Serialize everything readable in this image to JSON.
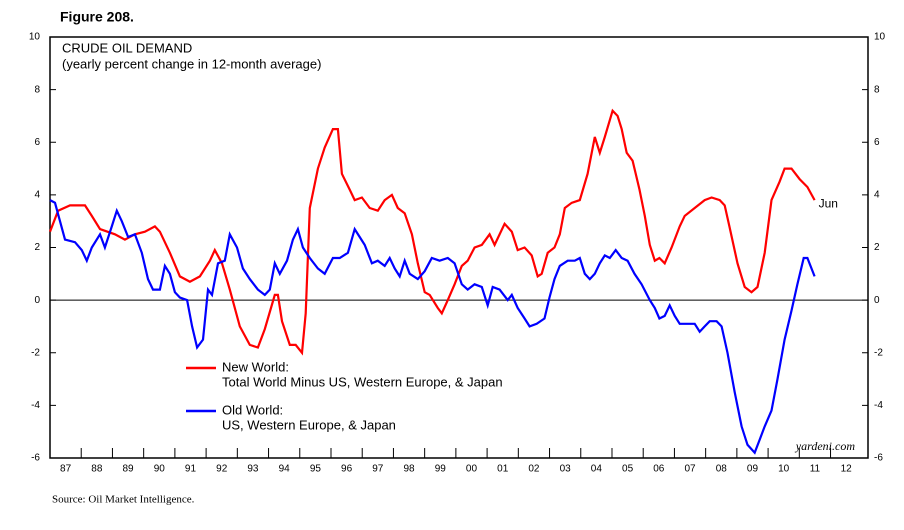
{
  "chart_data": {
    "type": "line",
    "figure_label": "Figure 208.",
    "title": "CRUDE OIL DEMAND",
    "subtitle": "(yearly percent change in 12-month average)",
    "source": "Source: Oil Market Intelligence.",
    "watermark": "yardeni.com",
    "end_annotation": "Jun",
    "xlim": [
      1987,
      2013.2
    ],
    "xticks": [
      {
        "value": 1987,
        "label": "87"
      },
      {
        "value": 1988,
        "label": "88"
      },
      {
        "value": 1989,
        "label": "89"
      },
      {
        "value": 1990,
        "label": "90"
      },
      {
        "value": 1991,
        "label": "91"
      },
      {
        "value": 1992,
        "label": "92"
      },
      {
        "value": 1993,
        "label": "93"
      },
      {
        "value": 1994,
        "label": "94"
      },
      {
        "value": 1995,
        "label": "95"
      },
      {
        "value": 1996,
        "label": "96"
      },
      {
        "value": 1997,
        "label": "97"
      },
      {
        "value": 1998,
        "label": "98"
      },
      {
        "value": 1999,
        "label": "99"
      },
      {
        "value": 2000,
        "label": "00"
      },
      {
        "value": 2001,
        "label": "01"
      },
      {
        "value": 2002,
        "label": "02"
      },
      {
        "value": 2003,
        "label": "03"
      },
      {
        "value": 2004,
        "label": "04"
      },
      {
        "value": 2005,
        "label": "05"
      },
      {
        "value": 2006,
        "label": "06"
      },
      {
        "value": 2007,
        "label": "07"
      },
      {
        "value": 2008,
        "label": "08"
      },
      {
        "value": 2009,
        "label": "09"
      },
      {
        "value": 2010,
        "label": "10"
      },
      {
        "value": 2011,
        "label": "11"
      },
      {
        "value": 2012,
        "label": "12"
      }
    ],
    "ylim": [
      -6,
      10
    ],
    "yticks": [
      -6,
      -4,
      -2,
      0,
      2,
      4,
      6,
      8,
      10
    ],
    "y2lim": [
      -6,
      10
    ],
    "y2ticks": [
      -6,
      -4,
      -2,
      0,
      2,
      4,
      6,
      8,
      10
    ],
    "zero_line": true,
    "series": [
      {
        "name": "New World:",
        "description": "Total World Minus US, Western Europe, & Japan",
        "color": "#ff0000",
        "x": [
          1987.0,
          1987.26,
          1987.64,
          1988.12,
          1988.34,
          1988.6,
          1989.08,
          1989.4,
          1989.72,
          1990.04,
          1990.36,
          1990.52,
          1990.84,
          1991.16,
          1991.48,
          1991.8,
          1992.12,
          1992.28,
          1992.51,
          1992.76,
          1993.08,
          1993.4,
          1993.66,
          1993.88,
          1994.2,
          1994.3,
          1994.43,
          1994.68,
          1994.87,
          1995.07,
          1995.19,
          1995.32,
          1995.58,
          1995.8,
          1996.06,
          1996.22,
          1996.35,
          1996.6,
          1996.76,
          1996.99,
          1997.24,
          1997.5,
          1997.72,
          1997.95,
          1998.14,
          1998.36,
          1998.59,
          1998.78,
          1999.0,
          1999.16,
          1999.42,
          1999.55,
          1999.74,
          1999.96,
          2000.19,
          2000.38,
          2000.6,
          2000.83,
          2001.08,
          2001.24,
          2001.56,
          2001.79,
          2001.98,
          2002.2,
          2002.43,
          2002.62,
          2002.75,
          2002.94,
          2003.16,
          2003.33,
          2003.49,
          2003.71,
          2003.97,
          2004.22,
          2004.45,
          2004.61,
          2004.77,
          2005.02,
          2005.18,
          2005.31,
          2005.47,
          2005.66,
          2005.88,
          2006.05,
          2006.21,
          2006.37,
          2006.52,
          2006.69,
          2006.91,
          2007.17,
          2007.33,
          2007.65,
          2007.97,
          2008.19,
          2008.45,
          2008.61,
          2008.76,
          2009.02,
          2009.25,
          2009.47,
          2009.66,
          2009.89,
          2010.11,
          2010.37,
          2010.53,
          2010.75,
          2011.01,
          2011.26,
          2011.49
        ],
        "values": [
          2.6,
          3.4,
          3.6,
          3.6,
          3.2,
          2.7,
          2.5,
          2.3,
          2.5,
          2.6,
          2.8,
          2.6,
          1.8,
          0.9,
          0.7,
          0.9,
          1.5,
          1.9,
          1.4,
          0.4,
          -1.0,
          -1.7,
          -1.8,
          -1.1,
          0.2,
          0.2,
          -0.8,
          -1.7,
          -1.7,
          -2.0,
          -0.5,
          3.5,
          5.0,
          5.8,
          6.5,
          6.5,
          4.8,
          4.2,
          3.8,
          3.9,
          3.5,
          3.4,
          3.8,
          4.0,
          3.5,
          3.3,
          2.5,
          1.4,
          0.3,
          0.2,
          -0.3,
          -0.5,
          0.0,
          0.6,
          1.3,
          1.5,
          2.0,
          2.1,
          2.5,
          2.1,
          2.9,
          2.6,
          1.9,
          2.0,
          1.7,
          0.9,
          1.0,
          1.8,
          2.0,
          2.5,
          3.5,
          3.7,
          3.8,
          4.8,
          6.2,
          5.6,
          6.2,
          7.2,
          7.0,
          6.5,
          5.6,
          5.3,
          4.2,
          3.2,
          2.1,
          1.5,
          1.6,
          1.4,
          2.0,
          2.8,
          3.2,
          3.5,
          3.8,
          3.9,
          3.8,
          3.6,
          2.8,
          1.4,
          0.5,
          0.3,
          0.5,
          1.8,
          3.8,
          4.5,
          5.0,
          5.0,
          4.6,
          4.3,
          3.8
        ]
      },
      {
        "name": "Old World:",
        "description": "US, Western Europe, & Japan",
        "color": "#0000ff",
        "x": [
          1987.0,
          1987.16,
          1987.32,
          1987.48,
          1987.8,
          1988.02,
          1988.18,
          1988.34,
          1988.6,
          1988.76,
          1988.98,
          1989.14,
          1989.3,
          1989.5,
          1989.72,
          1989.94,
          1990.14,
          1990.3,
          1990.52,
          1990.68,
          1990.84,
          1991.0,
          1991.16,
          1991.39,
          1991.55,
          1991.71,
          1991.9,
          1992.06,
          1992.19,
          1992.38,
          1992.6,
          1992.76,
          1992.99,
          1993.18,
          1993.4,
          1993.66,
          1993.88,
          1994.04,
          1994.2,
          1994.36,
          1994.59,
          1994.78,
          1994.94,
          1995.1,
          1995.32,
          1995.58,
          1995.8,
          1996.06,
          1996.28,
          1996.54,
          1996.76,
          1996.92,
          1997.08,
          1997.31,
          1997.5,
          1997.72,
          1997.88,
          1998.04,
          1998.2,
          1998.36,
          1998.52,
          1998.78,
          1999.0,
          1999.23,
          1999.48,
          1999.74,
          1999.96,
          2000.19,
          2000.38,
          2000.6,
          2000.83,
          2001.02,
          2001.18,
          2001.4,
          2001.66,
          2001.79,
          2001.98,
          2002.2,
          2002.36,
          2002.59,
          2002.84,
          2003.0,
          2003.16,
          2003.33,
          2003.58,
          2003.81,
          2003.97,
          2004.13,
          2004.29,
          2004.45,
          2004.61,
          2004.77,
          2004.93,
          2005.12,
          2005.31,
          2005.5,
          2005.72,
          2005.95,
          2006.21,
          2006.37,
          2006.52,
          2006.69,
          2006.85,
          2007.01,
          2007.17,
          2007.42,
          2007.65,
          2007.81,
          2007.97,
          2008.13,
          2008.35,
          2008.51,
          2008.7,
          2008.93,
          2009.15,
          2009.34,
          2009.57,
          2009.73,
          2009.89,
          2010.11,
          2010.3,
          2010.53,
          2010.75,
          2010.94,
          2011.14,
          2011.26,
          2011.49
        ],
        "values": [
          3.8,
          3.7,
          3.0,
          2.3,
          2.2,
          1.9,
          1.5,
          2.0,
          2.5,
          2.0,
          2.8,
          3.4,
          3.0,
          2.4,
          2.5,
          1.8,
          0.8,
          0.4,
          0.4,
          1.3,
          1.0,
          0.3,
          0.1,
          0.0,
          -1.0,
          -1.8,
          -1.5,
          0.4,
          0.2,
          1.4,
          1.5,
          2.5,
          2.0,
          1.2,
          0.8,
          0.4,
          0.2,
          0.4,
          1.4,
          1.0,
          1.5,
          2.3,
          2.7,
          2.0,
          1.6,
          1.2,
          1.0,
          1.6,
          1.6,
          1.8,
          2.7,
          2.4,
          2.1,
          1.4,
          1.5,
          1.3,
          1.6,
          1.2,
          0.9,
          1.5,
          1.0,
          0.8,
          1.1,
          1.6,
          1.5,
          1.6,
          1.4,
          0.6,
          0.4,
          0.6,
          0.5,
          -0.2,
          0.5,
          0.4,
          0.0,
          0.2,
          -0.3,
          -0.7,
          -1.0,
          -0.9,
          -0.7,
          0.1,
          0.8,
          1.3,
          1.5,
          1.5,
          1.6,
          1.0,
          0.8,
          1.0,
          1.4,
          1.7,
          1.6,
          1.9,
          1.6,
          1.5,
          1.0,
          0.6,
          0.0,
          -0.3,
          -0.7,
          -0.6,
          -0.2,
          -0.6,
          -0.9,
          -0.9,
          -0.9,
          -1.2,
          -1.0,
          -0.8,
          -0.8,
          -1.0,
          -2.0,
          -3.5,
          -4.8,
          -5.5,
          -5.8,
          -5.3,
          -4.8,
          -4.2,
          -3.0,
          -1.5,
          -0.4,
          0.6,
          1.6,
          1.6,
          0.9
        ]
      }
    ]
  }
}
